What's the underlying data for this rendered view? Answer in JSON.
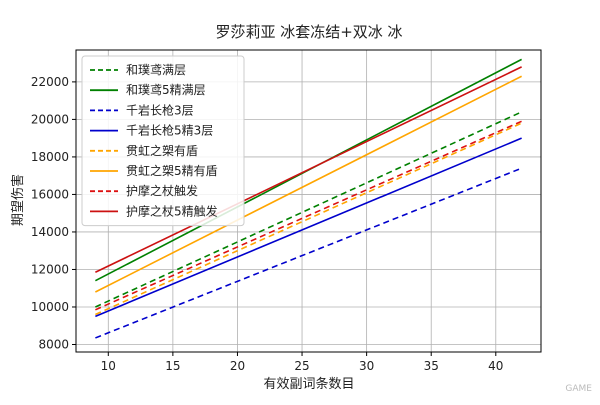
{
  "chart_data": {
    "type": "line",
    "title": "罗莎莉亚 冰套冻结+双冰 冰",
    "xlabel": "有效副词条数目",
    "ylabel": "期望伤害",
    "xlim": [
      7.5,
      43.5
    ],
    "ylim": [
      7600,
      23700
    ],
    "xticks": [
      10,
      15,
      20,
      25,
      30,
      35,
      40
    ],
    "yticks": [
      8000,
      10000,
      12000,
      14000,
      16000,
      18000,
      20000,
      22000
    ],
    "grid": true,
    "legend_position": "upper-left",
    "series": [
      {
        "name": "和璞鸢满层",
        "color": "#008000",
        "dash": "dashed",
        "x": [
          9,
          42
        ],
        "values": [
          10000,
          20400
        ]
      },
      {
        "name": "和璞鸢5精满层",
        "color": "#008000",
        "dash": "solid",
        "x": [
          9,
          42
        ],
        "values": [
          11400,
          23200
        ]
      },
      {
        "name": "千岩长枪3层",
        "color": "#0000cc",
        "dash": "dashed",
        "x": [
          9,
          42
        ],
        "values": [
          8350,
          17400
        ]
      },
      {
        "name": "千岩长枪5精3层",
        "color": "#0000cc",
        "dash": "solid",
        "x": [
          9,
          42
        ],
        "values": [
          9500,
          19000
        ]
      },
      {
        "name": "贯虹之槊有盾",
        "color": "#ffa500",
        "dash": "dashed",
        "x": [
          9,
          42
        ],
        "values": [
          9600,
          19800
        ]
      },
      {
        "name": "贯虹之槊5精有盾",
        "color": "#ffa500",
        "dash": "solid",
        "x": [
          9,
          42
        ],
        "values": [
          10800,
          22300
        ]
      },
      {
        "name": "护摩之杖触发",
        "color": "#dd1111",
        "dash": "dashed",
        "x": [
          9,
          42
        ],
        "values": [
          9850,
          19900
        ]
      },
      {
        "name": "护摩之杖5精触发",
        "color": "#cc1111",
        "dash": "solid",
        "x": [
          9,
          42
        ],
        "values": [
          11850,
          22800
        ]
      }
    ]
  },
  "watermark": "GAME"
}
